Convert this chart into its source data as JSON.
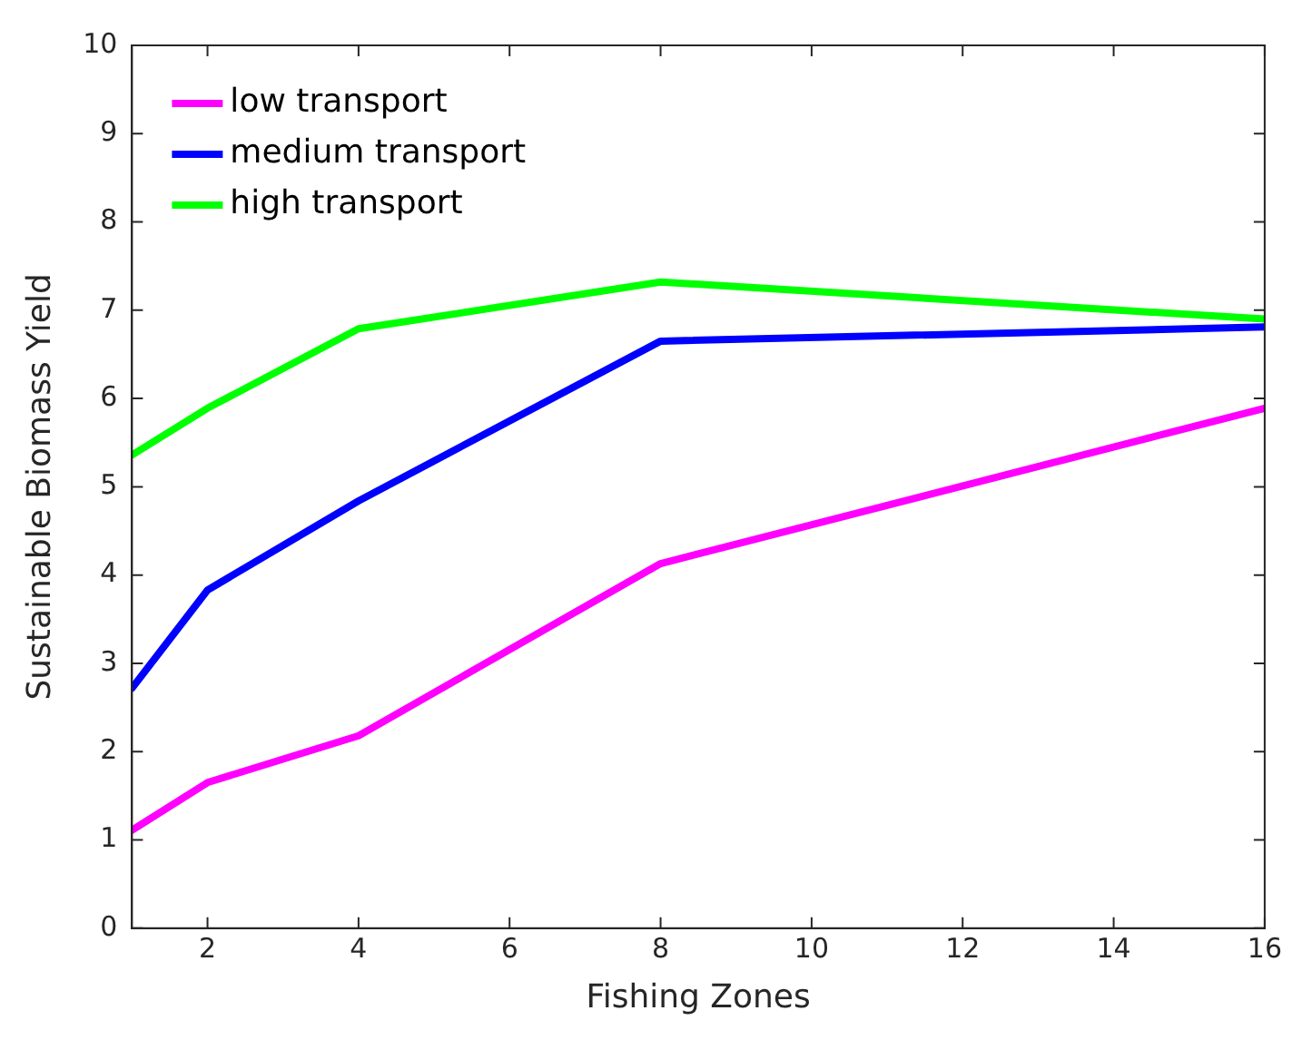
{
  "chart_data": {
    "type": "line",
    "xlabel": "Fishing Zones",
    "ylabel": "Sustainable Biomass Yield",
    "x": [
      1,
      2,
      4,
      8,
      16
    ],
    "series": [
      {
        "name": "low transport",
        "color": "#ff00ff",
        "values": [
          1.11,
          1.65,
          2.18,
          4.13,
          5.89
        ]
      },
      {
        "name": "medium transport",
        "color": "#0000ff",
        "values": [
          2.72,
          3.83,
          4.84,
          6.65,
          6.81
        ]
      },
      {
        "name": "high transport",
        "color": "#00ff00",
        "values": [
          5.36,
          5.89,
          6.79,
          7.32,
          6.9
        ]
      }
    ],
    "xlim": [
      1,
      16
    ],
    "xticks": [
      2,
      4,
      6,
      8,
      10,
      12,
      14,
      16
    ],
    "ylim": [
      0,
      10
    ],
    "yticks": [
      0,
      1,
      2,
      3,
      4,
      5,
      6,
      7,
      8,
      9,
      10
    ],
    "grid": false,
    "legend": "top left",
    "marker": "none",
    "line_style": "solid"
  }
}
